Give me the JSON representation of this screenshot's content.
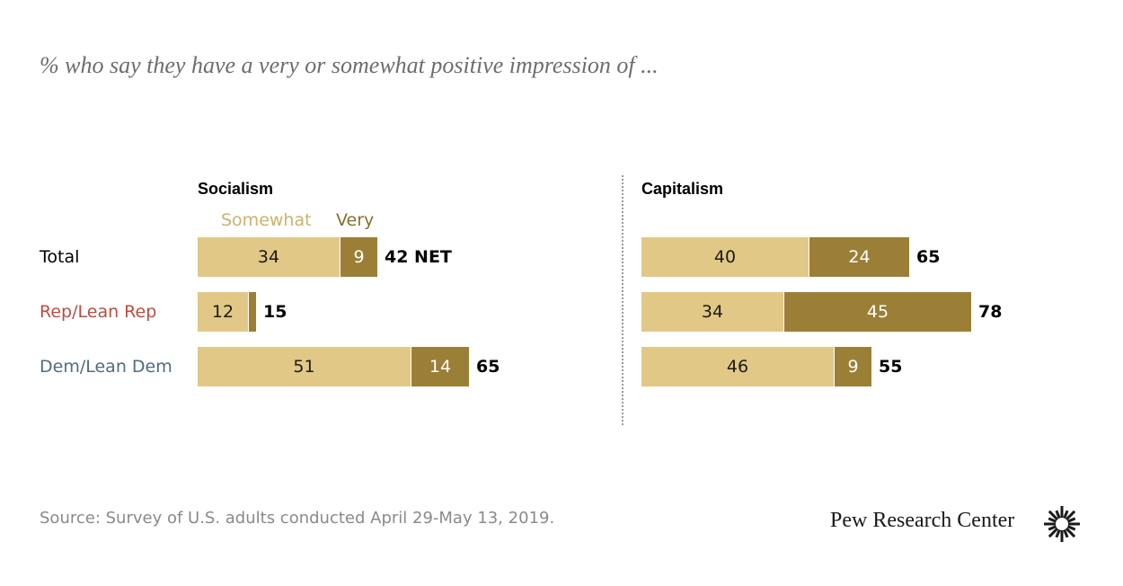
{
  "subtitle": "% who say they have a very or somewhat positive impression of ...",
  "legend": {
    "somewhat": "Somewhat",
    "very": "Very"
  },
  "source": "Source: Survey of U.S. adults conducted April 29-May 13, 2019.",
  "brand": "Pew Research Center",
  "colors": {
    "somewhat": "#e2c886",
    "very": "#9c7f36",
    "legend_somewhat": "#cfb06a",
    "legend_very": "#8a6e2a",
    "rep": "#bf4a3e",
    "dem": "#4f6c7f",
    "total": "#000000"
  },
  "chart_data": [
    {
      "type": "bar",
      "stacked": true,
      "orientation": "horizontal",
      "title": "Socialism",
      "categories": [
        "Total",
        "Rep/Lean Rep",
        "Dem/Lean Dem"
      ],
      "series": [
        {
          "name": "Somewhat",
          "values": [
            34,
            12,
            51
          ],
          "labels": [
            "34",
            "12",
            "51"
          ]
        },
        {
          "name": "Very",
          "values": [
            9,
            2,
            14
          ],
          "labels": [
            "9",
            "",
            "14"
          ]
        }
      ],
      "net": [
        "42 NET",
        "15",
        "65"
      ]
    },
    {
      "type": "bar",
      "stacked": true,
      "orientation": "horizontal",
      "title": "Capitalism",
      "categories": [
        "Total",
        "Rep/Lean Rep",
        "Dem/Lean Dem"
      ],
      "series": [
        {
          "name": "Somewhat",
          "values": [
            40,
            34,
            46
          ],
          "labels": [
            "40",
            "34",
            "46"
          ]
        },
        {
          "name": "Very",
          "values": [
            24,
            45,
            9
          ],
          "labels": [
            "24",
            "45",
            "9"
          ]
        }
      ],
      "net": [
        "65",
        "78",
        "55"
      ]
    }
  ]
}
